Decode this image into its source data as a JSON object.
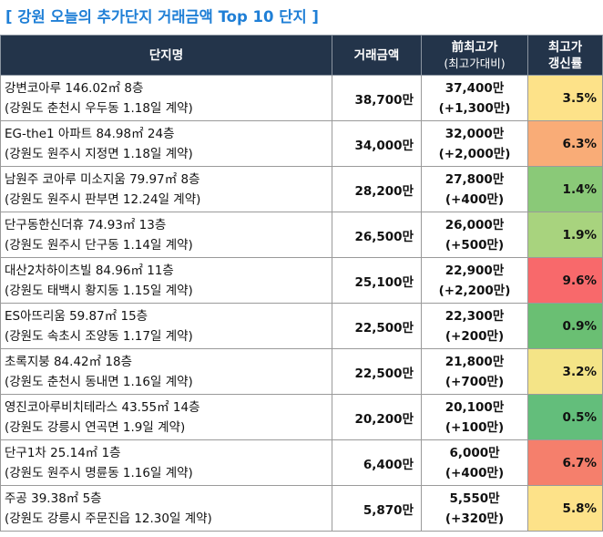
{
  "title": "[ 강원 오늘의 추가단지 거래금액 Top 10 단지 ]",
  "headers": {
    "name": "단지명",
    "amount": "거래금액",
    "prev_top": "前최고가",
    "prev_sub": "(최고가대비)",
    "rate_top": "최고가",
    "rate_sub": "갱신률"
  },
  "rows": [
    {
      "name": "강변코아루 146.02㎡ 8층",
      "location": "(강원도 춘천시 우두동 1.18일 계약)",
      "amount": "38,700만",
      "prev_price": "37,400만",
      "prev_diff": "(+1,300만)",
      "rate": "3.5%",
      "rate_color": "#fde289"
    },
    {
      "name": "EG-the1 아파트 84.98㎡ 24층",
      "location": "(강원도 원주시 지정면 1.18일 계약)",
      "amount": "34,000만",
      "prev_price": "32,000만",
      "prev_diff": "(+2,000만)",
      "rate": "6.3%",
      "rate_color": "#f9ac77"
    },
    {
      "name": "남원주 코아루 미소지움 79.97㎡ 8층",
      "location": "(강원도 원주시 판부면 12.24일 계약)",
      "amount": "28,200만",
      "prev_price": "27,800만",
      "prev_diff": "(+400만)",
      "rate": "1.4%",
      "rate_color": "#8ac978"
    },
    {
      "name": "단구동한신더휴 74.93㎡ 13층",
      "location": "(강원도 원주시 단구동 1.14일 계약)",
      "amount": "26,500만",
      "prev_price": "26,000만",
      "prev_diff": "(+500만)",
      "rate": "1.9%",
      "rate_color": "#a8d37e"
    },
    {
      "name": "대산2차하이츠빌 84.96㎡ 11층",
      "location": "(강원도 태백시 황지동 1.15일 계약)",
      "amount": "25,100만",
      "prev_price": "22,900만",
      "prev_diff": "(+2,200만)",
      "rate": "9.6%",
      "rate_color": "#f8696b"
    },
    {
      "name": "ES아뜨리움 59.87㎡ 15층",
      "location": "(강원도 속초시 조양동 1.17일 계약)",
      "amount": "22,500만",
      "prev_price": "22,300만",
      "prev_diff": "(+200만)",
      "rate": "0.9%",
      "rate_color": "#6abf73"
    },
    {
      "name": "초록지붕 84.42㎡ 18층",
      "location": "(강원도 춘천시 동내면 1.16일 계약)",
      "amount": "22,500만",
      "prev_price": "21,800만",
      "prev_diff": "(+700만)",
      "rate": "3.2%",
      "rate_color": "#f4e487"
    },
    {
      "name": "영진코아루비치테라스 43.55㎡ 14층",
      "location": "(강원도 강릉시 연곡면 1.9일 계약)",
      "amount": "20,200만",
      "prev_price": "20,100만",
      "prev_diff": "(+100만)",
      "rate": "0.5%",
      "rate_color": "#63be7b"
    },
    {
      "name": "단구1차 25.14㎡ 1층",
      "location": "(강원도 원주시 명륜동 1.16일 계약)",
      "amount": "6,400만",
      "prev_price": "6,000만",
      "prev_diff": "(+400만)",
      "rate": "6.7%",
      "rate_color": "#f57f6c"
    },
    {
      "name": "주공 39.38㎡ 5층",
      "location": "(강원도 강릉시 주문진읍 12.30일 계약)",
      "amount": "5,870만",
      "prev_price": "5,550만",
      "prev_diff": "(+320만)",
      "rate": "5.8%",
      "rate_color": "#fde289"
    }
  ]
}
